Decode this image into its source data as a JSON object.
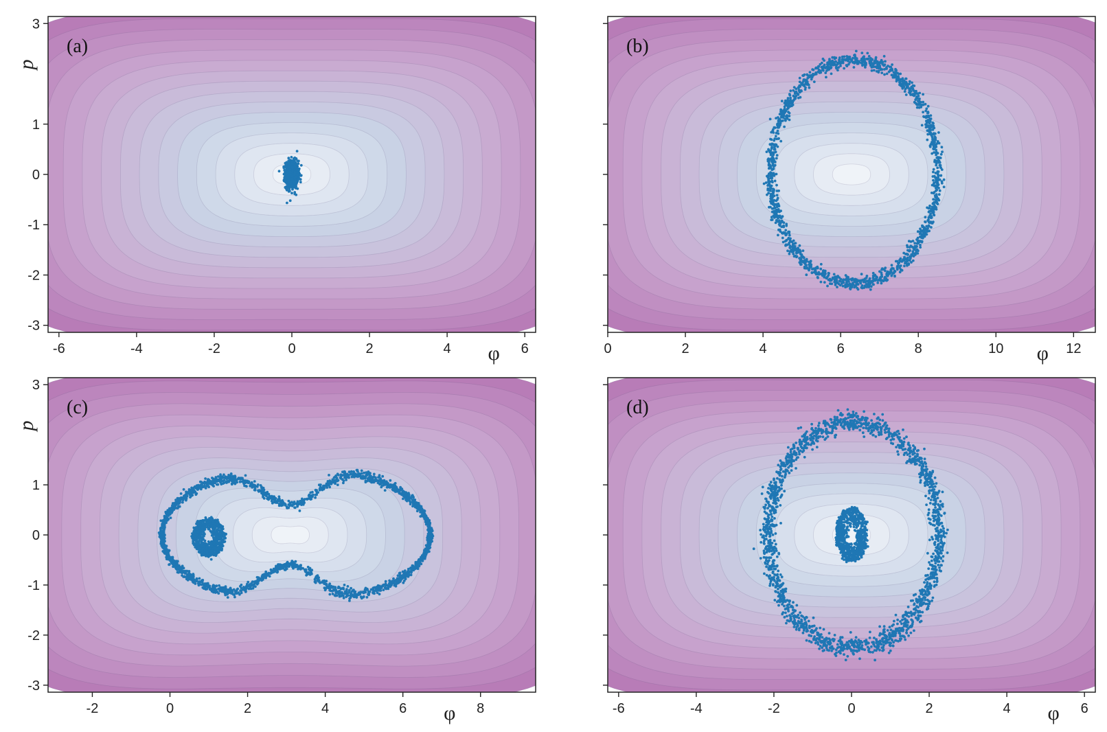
{
  "colors": {
    "contour_center": "#f7f9fc",
    "contour_mid": "#c9d4e6",
    "contour_outer": "#c9a6cf",
    "contour_corner": "#b36fb0",
    "points": "#1f77b4",
    "axes": "#222222"
  },
  "chart_data": [
    {
      "type": "scatter",
      "label": "(a)",
      "xlabel": "φ",
      "ylabel": "p",
      "xlim": [
        -6.28,
        6.28
      ],
      "ylim": [
        -3.14,
        3.14
      ],
      "xticks": [
        -6,
        -4,
        -2,
        0,
        2,
        4,
        6
      ],
      "xtick_labels": [
        "-6",
        "-4",
        "-2",
        "0",
        "2",
        "4",
        "6"
      ],
      "yticks": [
        3,
        1,
        0,
        -1,
        -2,
        -3
      ],
      "ytick_labels": [
        "3",
        "1",
        "0",
        "-1",
        "-2",
        "-3"
      ],
      "background": "contour",
      "contour_center": [
        0,
        0
      ],
      "series": [
        {
          "kind": "cluster",
          "center": [
            0,
            0
          ],
          "rx": 0.18,
          "ry": 0.3,
          "n": 900
        }
      ]
    },
    {
      "type": "scatter",
      "label": "(b)",
      "xlabel": "φ",
      "ylabel": "",
      "xlim": [
        0,
        12.56
      ],
      "ylim": [
        -3.14,
        3.14
      ],
      "xticks": [
        0,
        2,
        4,
        6,
        8,
        10,
        12
      ],
      "xtick_labels": [
        "0",
        "2",
        "4",
        "6",
        "8",
        "10",
        "12"
      ],
      "yticks": [
        3,
        1,
        0,
        -1,
        -2,
        -3
      ],
      "ytick_labels": [],
      "background": "contour",
      "contour_center": [
        6.28,
        0
      ],
      "series": [
        {
          "kind": "ring",
          "center": [
            6.35,
            0.05
          ],
          "rx": 2.15,
          "ry": 2.22,
          "n": 1600,
          "spread": 0.06
        }
      ]
    },
    {
      "type": "scatter",
      "label": "(c)",
      "xlabel": "φ",
      "ylabel": "p",
      "xlim": [
        -3.14,
        9.42
      ],
      "ylim": [
        -3.14,
        3.14
      ],
      "xticks": [
        -2,
        0,
        2,
        4,
        6,
        8
      ],
      "xtick_labels": [
        "-2",
        "0",
        "2",
        "4",
        "6",
        "8"
      ],
      "yticks": [
        3,
        1,
        0,
        -1,
        -2,
        -3
      ],
      "ytick_labels": [
        "3",
        "1",
        "0",
        "-1",
        "-2",
        "-3"
      ],
      "background": "double-well",
      "contour_center": [
        3.1,
        0
      ],
      "series": [
        {
          "kind": "separatrix",
          "x_range": [
            -0.2,
            6.7
          ],
          "n": 2400,
          "spread": 0.035
        },
        {
          "kind": "spiral",
          "center": [
            1.0,
            -0.05
          ],
          "rx": 0.42,
          "ry": 0.38,
          "n": 700
        }
      ]
    },
    {
      "type": "scatter",
      "label": "(d)",
      "xlabel": "φ",
      "ylabel": "",
      "xlim": [
        -6.28,
        6.28
      ],
      "ylim": [
        -3.14,
        3.14
      ],
      "xticks": [
        -6,
        -4,
        -2,
        0,
        2,
        4,
        6
      ],
      "xtick_labels": [
        "-6",
        "-4",
        "-2",
        "0",
        "2",
        "4",
        "6"
      ],
      "yticks": [
        3,
        1,
        0,
        -1,
        -2,
        -3
      ],
      "ytick_labels": [],
      "background": "contour",
      "contour_center": [
        0,
        0
      ],
      "series": [
        {
          "kind": "ring",
          "center": [
            0.05,
            0.0
          ],
          "rx": 2.2,
          "ry": 2.25,
          "n": 1900,
          "spread": 0.09
        },
        {
          "kind": "spiral",
          "center": [
            0.0,
            0.0
          ],
          "rx": 0.4,
          "ry": 0.55,
          "n": 700
        }
      ]
    }
  ]
}
